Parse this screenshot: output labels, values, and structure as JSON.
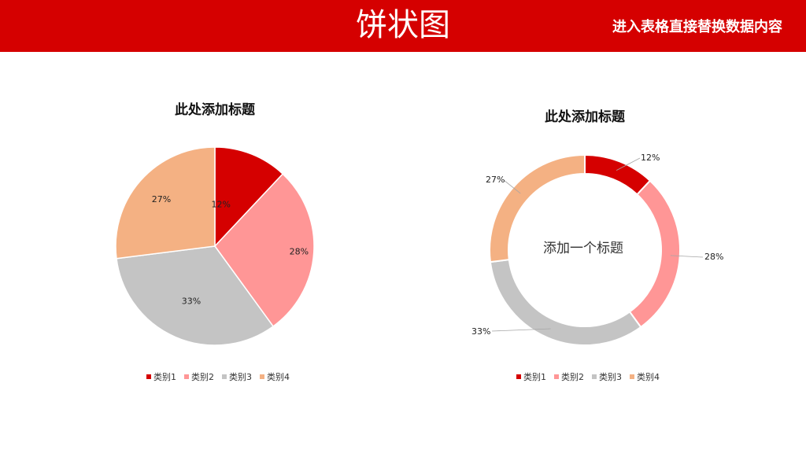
{
  "header": {
    "title": "饼状图",
    "subtitle": "进入表格直接替换数据内容"
  },
  "chart_data": [
    {
      "type": "pie",
      "title": "此处添加标题",
      "categories": [
        "类别1",
        "类别2",
        "类别3",
        "类别4"
      ],
      "values": [
        12,
        28,
        33,
        27
      ],
      "labels": [
        "12%",
        "28%",
        "33%",
        "27%"
      ],
      "colors": [
        "#d50000",
        "#ff9696",
        "#c4c4c4",
        "#f4b183"
      ],
      "legend": "bottom"
    },
    {
      "type": "donut",
      "title": "此处添加标题",
      "center_text": "添加一个标题",
      "categories": [
        "类别1",
        "类别2",
        "类别3",
        "类别4"
      ],
      "values": [
        12,
        28,
        33,
        27
      ],
      "labels": [
        "12%",
        "28%",
        "33%",
        "27%"
      ],
      "colors": [
        "#d50000",
        "#ff9696",
        "#c4c4c4",
        "#f4b183"
      ],
      "legend": "bottom"
    }
  ]
}
